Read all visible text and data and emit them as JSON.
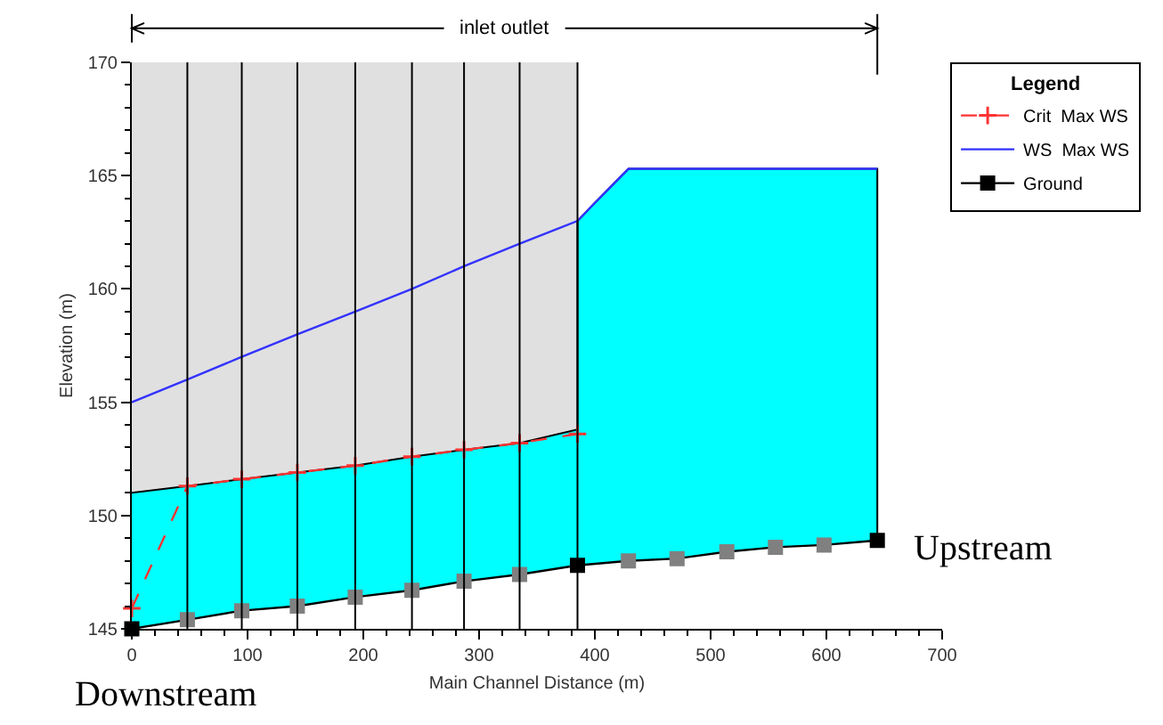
{
  "chart_data": {
    "type": "line",
    "xlabel": "Main Channel Distance (m)",
    "ylabel": "Elevation (m)",
    "legend_title": "Legend",
    "xlim": [
      0,
      700
    ],
    "xticks": [
      0,
      100,
      200,
      300,
      400,
      500,
      600,
      700
    ],
    "ylim": [
      145,
      170
    ],
    "yticks": [
      145,
      150,
      155,
      160,
      165,
      170
    ],
    "grid": false,
    "legend": "right",
    "series": [
      {
        "name": "Ground",
        "color": "#000000",
        "x": [
          0,
          48,
          95,
          143,
          193,
          242,
          287,
          335,
          385,
          429,
          471,
          514,
          556,
          598,
          644
        ],
        "values": [
          145.0,
          145.4,
          145.8,
          146.0,
          146.4,
          146.7,
          147.1,
          147.4,
          147.8,
          148.0,
          148.1,
          148.4,
          148.6,
          148.7,
          148.9
        ],
        "colors": [
          "#000000",
          "#808080",
          "#808080",
          "#808080",
          "#808080",
          "#808080",
          "#808080",
          "#808080",
          "#000000",
          "#808080",
          "#808080",
          "#808080",
          "#808080",
          "#808080",
          "#000000"
        ],
        "marker": "square",
        "line_style": "solid"
      },
      {
        "type": "area",
        "color": "#00ffff",
        "x": [
          0,
          48,
          95,
          143,
          193,
          242,
          287,
          335,
          385,
          385,
          400,
          429,
          471,
          514,
          556,
          598,
          644,
          644
        ],
        "values": [
          151.0,
          151.3,
          151.6,
          151.9,
          152.2,
          152.6,
          152.9,
          153.2,
          153.8,
          163.0,
          163.8,
          165.3,
          165.3,
          165.3,
          165.3,
          165.3,
          165.3,
          148.9
        ]
      },
      {
        "name": "WS  Max WS",
        "color": "#3333ff",
        "x": [
          0,
          48,
          95,
          143,
          193,
          242,
          287,
          335,
          385,
          400,
          429,
          644
        ],
        "values": [
          155.0,
          156.0,
          157.0,
          158.0,
          159.0,
          160.0,
          161.0,
          162.0,
          163.0,
          163.8,
          165.3,
          165.3
        ],
        "line_style": "solid"
      },
      {
        "name": "Crit  Max WS",
        "color": "#ff3333",
        "x": [
          0,
          48,
          95,
          143,
          193,
          242,
          287,
          335,
          385
        ],
        "values": [
          145.9,
          151.3,
          151.6,
          151.9,
          152.2,
          152.6,
          152.9,
          153.2,
          153.6
        ],
        "marker": "cross",
        "line_style": "dashed"
      }
    ],
    "bands": [
      {
        "axis": "x",
        "from": 0,
        "to": 385,
        "color": "#e0e0e0"
      }
    ],
    "ref_lines": [
      {
        "axis": "x",
        "value": 48,
        "color": "#000000"
      },
      {
        "axis": "x",
        "value": 95,
        "color": "#000000"
      },
      {
        "axis": "x",
        "value": 143,
        "color": "#000000"
      },
      {
        "axis": "x",
        "value": 193,
        "color": "#000000"
      },
      {
        "axis": "x",
        "value": 242,
        "color": "#000000"
      },
      {
        "axis": "x",
        "value": 287,
        "color": "#000000"
      },
      {
        "axis": "x",
        "value": 335,
        "color": "#000000"
      },
      {
        "axis": "x",
        "value": 385,
        "color": "#000000"
      }
    ],
    "annotations": [
      "inlet outlet",
      {
        "text": "Downstream",
        "x": 0,
        "y": 145.0
      },
      {
        "text": "Upstream",
        "x": 644,
        "y": 148.9
      }
    ]
  }
}
